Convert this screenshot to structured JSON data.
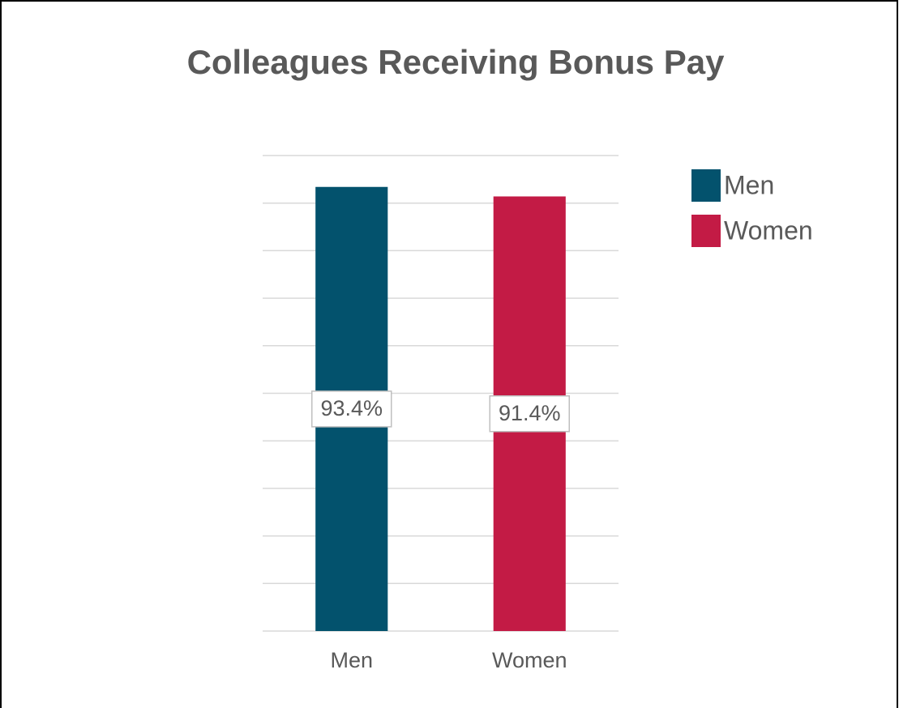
{
  "chart_data": {
    "type": "bar",
    "title": "Colleagues Receiving Bonus Pay",
    "categories": [
      "Men",
      "Women"
    ],
    "values": [
      93.4,
      91.4
    ],
    "value_labels": [
      "93.4%",
      "91.4%"
    ],
    "colors": [
      "#03526d",
      "#c31b45"
    ],
    "ylim": [
      0,
      100
    ],
    "yticks": [
      0,
      10,
      20,
      30,
      40,
      50,
      60,
      70,
      80,
      90,
      100
    ],
    "grid": true,
    "legend": "right"
  }
}
